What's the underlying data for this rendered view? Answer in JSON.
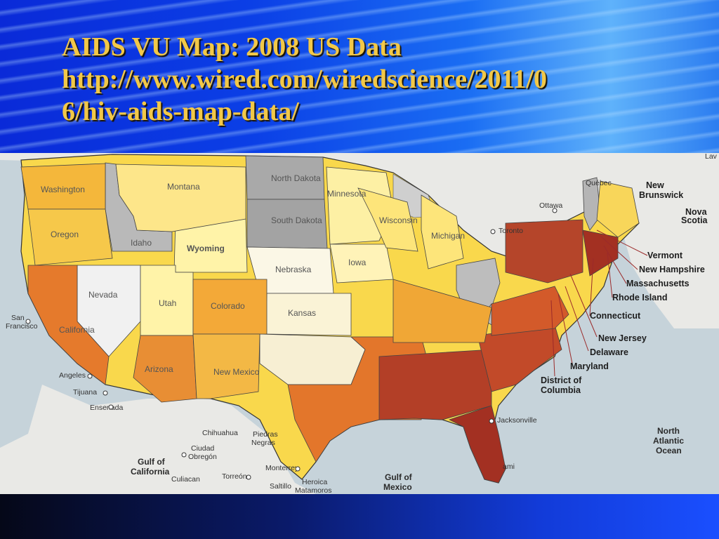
{
  "slide": {
    "title_line1": "AIDS VU Map: 2008 US Data",
    "title_line2": "http://www.wired.com/wiredscience/2011/0",
    "title_line3": "6/hiv-aids-map-data/"
  },
  "map": {
    "colors": {
      "no_data": "#b9b9b9",
      "lowest": "#fff3a8",
      "low": "#f9d84c",
      "mid": "#f2a32e",
      "high": "#e06a2a",
      "highest": "#9c2b22",
      "water": "#c6d3da",
      "land": "#e9e9e6",
      "border": "#333333"
    },
    "state_labels": [
      "Washington",
      "Oregon",
      "Idaho",
      "Montana",
      "Wyoming",
      "Nevada",
      "Utah",
      "Colorado",
      "California",
      "Arizona",
      "New Mexico",
      "North Dakota",
      "South Dakota",
      "Nebraska",
      "Kansas",
      "Minnesota",
      "Iowa",
      "Wisconsin",
      "Michigan"
    ],
    "northeast_callouts": [
      "Vermont",
      "New Hampshire",
      "Massachusetts",
      "Rhode Island",
      "Connecticut",
      "New Jersey",
      "Delaware",
      "Maryland",
      "District of",
      "Columbia"
    ],
    "place_labels": {
      "san_francisco_1": "San",
      "san_francisco_2": "Francisco",
      "los_angeles": "Angeles",
      "tijuana": "Tijuana",
      "ensenada": "Ensenada",
      "chihuahua": "Chihuahua",
      "piedras_negras_1": "Piedras",
      "piedras_negras_2": "Negras",
      "ciudad_obregon_1": "Ciudad",
      "ciudad_obregon_2": "Obregón",
      "culiacan": "Culiacan",
      "torreon": "Torreón",
      "monterrey": "Monterrey",
      "saltillo": "Saltillo",
      "heroica_1": "Heroica",
      "heroica_2": "Matamoros",
      "jacksonville": "Jacksonville",
      "toronto": "Toronto",
      "ottawa": "Ottawa",
      "quebec": "Québec",
      "laval": "Lav",
      "miami": "ami"
    },
    "water_labels": {
      "gulf_california_1": "Gulf of",
      "gulf_california_2": "California",
      "gulf_mexico_1": "Gulf of",
      "gulf_mexico_2": "Mexico",
      "atlantic_1": "North",
      "atlantic_2": "Atlantic",
      "atlantic_3": "Ocean"
    },
    "canada_labels": {
      "new_brunswick_1": "New",
      "new_brunswick_2": "Brunswick",
      "nova_scotia_1": "Nova",
      "nova_scotia_2": "Scotia"
    }
  }
}
